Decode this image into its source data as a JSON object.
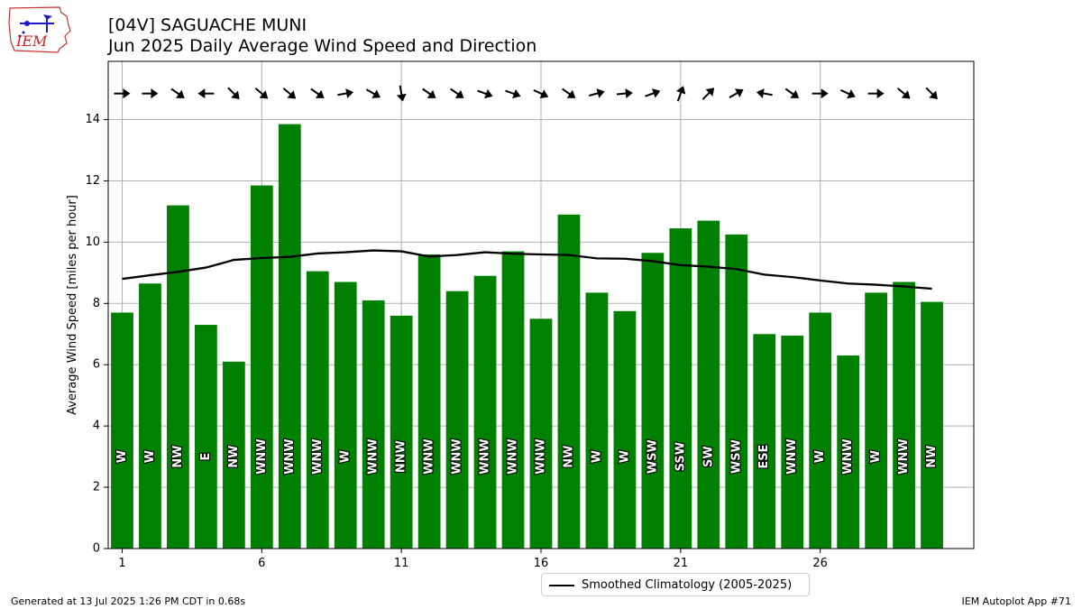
{
  "header": {
    "title_line1": "[04V] SAGUACHE MUNI",
    "title_line2": "Jun 2025 Daily Average Wind Speed and Direction"
  },
  "logo": {
    "text": "IEM",
    "icon": "iem-logo-icon"
  },
  "footer": {
    "generated": "Generated at 13 Jul 2025 1:26 PM CDT in 0.68s",
    "app": "IEM Autoplot App #71"
  },
  "colors": {
    "bar": "#008000",
    "climatology": "#000000",
    "grid": "#b0b0b0"
  },
  "chart_data": {
    "type": "bar",
    "ylabel": "Average Wind Speed [miles per hour]",
    "xlabel": "",
    "ylim": [
      0,
      15.9
    ],
    "xlim": [
      0.5,
      31.5
    ],
    "grid": true,
    "legend_position": "bottom-center",
    "x_ticks": [
      1,
      6,
      11,
      16,
      21,
      26
    ],
    "y_ticks": [
      0,
      2,
      4,
      6,
      8,
      10,
      12,
      14
    ],
    "days": [
      1,
      2,
      3,
      4,
      5,
      6,
      7,
      8,
      9,
      10,
      11,
      12,
      13,
      14,
      15,
      16,
      17,
      18,
      19,
      20,
      21,
      22,
      23,
      24,
      25,
      26,
      27,
      28,
      29,
      30
    ],
    "series": [
      {
        "name": "Average Wind Speed",
        "values": [
          7.7,
          8.65,
          11.2,
          7.3,
          6.1,
          11.85,
          13.85,
          9.05,
          8.7,
          8.1,
          7.6,
          9.6,
          8.4,
          8.9,
          9.7,
          7.5,
          10.9,
          8.35,
          7.75,
          9.65,
          10.45,
          10.7,
          10.25,
          7.0,
          6.95,
          7.7,
          6.3,
          8.35,
          8.7,
          8.05
        ]
      },
      {
        "name": "Smoothed Climatology (2005-2025)",
        "values": [
          8.8,
          8.92,
          9.03,
          9.17,
          9.42,
          9.48,
          9.52,
          9.63,
          9.67,
          9.73,
          9.7,
          9.53,
          9.58,
          9.67,
          9.62,
          9.6,
          9.58,
          9.47,
          9.46,
          9.38,
          9.25,
          9.2,
          9.12,
          8.94,
          8.86,
          8.75,
          8.65,
          8.61,
          8.55,
          8.48
        ]
      }
    ],
    "directions": [
      "W",
      "W",
      "NW",
      "E",
      "NW",
      "WNW",
      "WNW",
      "WNW",
      "W",
      "WNW",
      "NNW",
      "WNW",
      "WNW",
      "WNW",
      "WNW",
      "WNW",
      "NW",
      "W",
      "W",
      "WSW",
      "SSW",
      "SW",
      "WSW",
      "ESE",
      "WNW",
      "W",
      "WNW",
      "W",
      "WNW",
      "NW"
    ],
    "arrow_headings_deg": [
      90,
      90,
      125,
      270,
      135,
      130,
      130,
      125,
      80,
      120,
      170,
      125,
      125,
      110,
      110,
      115,
      125,
      75,
      85,
      70,
      20,
      45,
      60,
      280,
      125,
      90,
      115,
      90,
      130,
      135
    ]
  }
}
